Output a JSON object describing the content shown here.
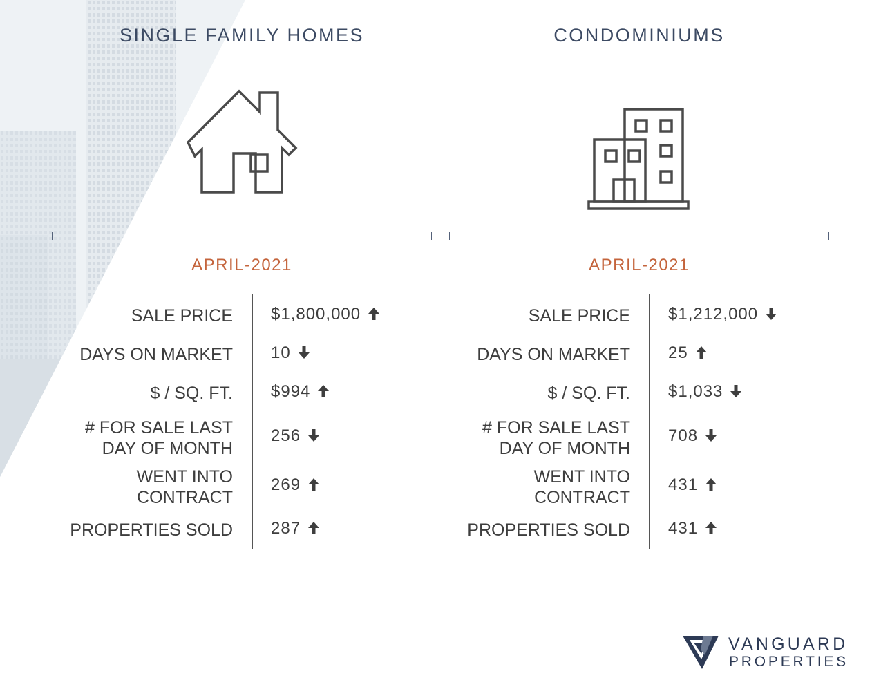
{
  "columns": [
    {
      "title": "SINGLE FAMILY HOMES",
      "icon": "house-icon",
      "period": "APRIL-2021",
      "rows": [
        {
          "label_lines": [
            "SALE PRICE"
          ],
          "value": "$1,800,000",
          "trend": "up"
        },
        {
          "label_lines": [
            "DAYS ON MARKET"
          ],
          "value": "10",
          "trend": "down"
        },
        {
          "label_lines": [
            "$ / SQ. FT."
          ],
          "value": "$994",
          "trend": "up"
        },
        {
          "label_lines": [
            "# FOR SALE LAST",
            "DAY OF MONTH"
          ],
          "value": "256",
          "trend": "down"
        },
        {
          "label_lines": [
            "WENT INTO",
            "CONTRACT"
          ],
          "value": "269",
          "trend": "up"
        },
        {
          "label_lines": [
            "PROPERTIES SOLD"
          ],
          "value": "287",
          "trend": "up"
        }
      ]
    },
    {
      "title": "CONDOMINIUMS",
      "icon": "condo-building-icon",
      "period": "APRIL-2021",
      "rows": [
        {
          "label_lines": [
            "SALE PRICE"
          ],
          "value": "$1,212,000",
          "trend": "down"
        },
        {
          "label_lines": [
            "DAYS ON MARKET"
          ],
          "value": "25",
          "trend": "up"
        },
        {
          "label_lines": [
            "$ / SQ. FT."
          ],
          "value": "$1,033",
          "trend": "down"
        },
        {
          "label_lines": [
            "# FOR SALE LAST",
            "DAY OF MONTH"
          ],
          "value": "708",
          "trend": "down"
        },
        {
          "label_lines": [
            "WENT INTO",
            "CONTRACT"
          ],
          "value": "431",
          "trend": "up"
        },
        {
          "label_lines": [
            "PROPERTIES SOLD"
          ],
          "value": "431",
          "trend": "up"
        }
      ]
    }
  ],
  "logo": {
    "line1": "VANGUARD",
    "line2": "PROPERTIES",
    "icon": "vanguard-v-logo-icon"
  },
  "colors": {
    "title": "#3c4a63",
    "period": "#c4643c",
    "text": "#3e3e3e",
    "logo": "#2d3a55"
  }
}
